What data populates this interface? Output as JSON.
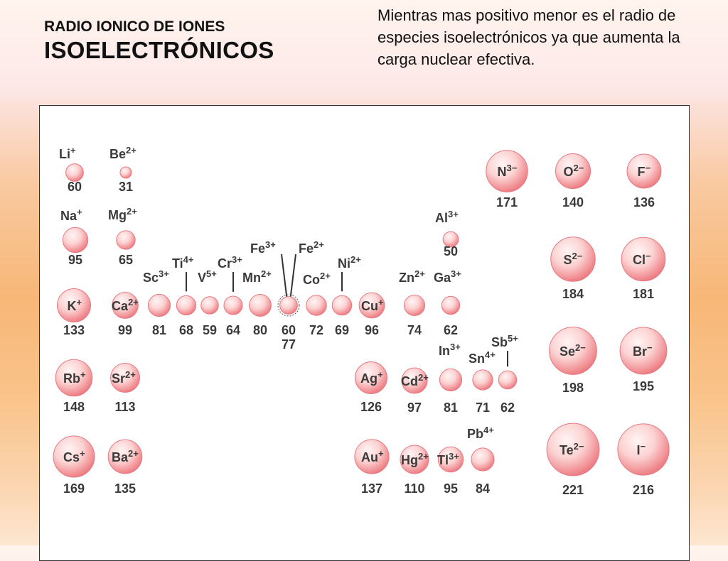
{
  "header": {
    "title_line1": "RADIO IONICO DE IONES",
    "title_line2": "ISOELECTRÓNICOS",
    "note": "Mientras mas positivo menor es el radio de especies isoelectrónicos ya que aumenta la carga nuclear efectiva."
  },
  "colors": {
    "sphere_fill": "#f08a8f",
    "sphere_highlight": "#fde4e4",
    "text": "#3a3a3a"
  },
  "chart_data": {
    "type": "diagram",
    "units": "pm",
    "ions": [
      {
        "symbol": "Li",
        "charge": "+",
        "radius": 60
      },
      {
        "symbol": "Be",
        "charge": "2+",
        "radius": 31
      },
      {
        "symbol": "Na",
        "charge": "+",
        "radius": 95
      },
      {
        "symbol": "Mg",
        "charge": "2+",
        "radius": 65
      },
      {
        "symbol": "K",
        "charge": "+",
        "radius": 133
      },
      {
        "symbol": "Ca",
        "charge": "2+",
        "radius": 99
      },
      {
        "symbol": "Sc",
        "charge": "3+",
        "radius": 81
      },
      {
        "symbol": "Ti",
        "charge": "4+",
        "radius": 68
      },
      {
        "symbol": "V",
        "charge": "5+",
        "radius": 59
      },
      {
        "symbol": "Cr",
        "charge": "3+",
        "radius": 64
      },
      {
        "symbol": "Mn",
        "charge": "2+",
        "radius": 80
      },
      {
        "symbol": "Fe",
        "charge": "3+",
        "radius": 60
      },
      {
        "symbol": "Fe",
        "charge": "2+",
        "radius": 77
      },
      {
        "symbol": "Co",
        "charge": "2+",
        "radius": 72
      },
      {
        "symbol": "Ni",
        "charge": "2+",
        "radius": 69
      },
      {
        "symbol": "Cu",
        "charge": "+",
        "radius": 96
      },
      {
        "symbol": "Zn",
        "charge": "2+",
        "radius": 74
      },
      {
        "symbol": "Ga",
        "charge": "3+",
        "radius": 62
      },
      {
        "symbol": "Al",
        "charge": "3+",
        "radius": 50
      },
      {
        "symbol": "N",
        "charge": "3−",
        "radius": 171
      },
      {
        "symbol": "O",
        "charge": "2−",
        "radius": 140
      },
      {
        "symbol": "F",
        "charge": "−",
        "radius": 136
      },
      {
        "symbol": "S",
        "charge": "2−",
        "radius": 184
      },
      {
        "symbol": "Cl",
        "charge": "−",
        "radius": 181
      },
      {
        "symbol": "Se",
        "charge": "2−",
        "radius": 198
      },
      {
        "symbol": "Br",
        "charge": "−",
        "radius": 195
      },
      {
        "symbol": "Rb",
        "charge": "+",
        "radius": 148
      },
      {
        "symbol": "Sr",
        "charge": "2+",
        "radius": 113
      },
      {
        "symbol": "Ag",
        "charge": "+",
        "radius": 126
      },
      {
        "symbol": "Cd",
        "charge": "2+",
        "radius": 97
      },
      {
        "symbol": "In",
        "charge": "3+",
        "radius": 81
      },
      {
        "symbol": "Sn",
        "charge": "4+",
        "radius": 71
      },
      {
        "symbol": "Sb",
        "charge": "5+",
        "radius": 62
      },
      {
        "symbol": "Te",
        "charge": "2−",
        "radius": 221
      },
      {
        "symbol": "I",
        "charge": "−",
        "radius": 216
      },
      {
        "symbol": "Cs",
        "charge": "+",
        "radius": 169
      },
      {
        "symbol": "Ba",
        "charge": "2+",
        "radius": 135
      },
      {
        "symbol": "Au",
        "charge": "+",
        "radius": 137
      },
      {
        "symbol": "Hg",
        "charge": "2+",
        "radius": 110
      },
      {
        "symbol": "Tl",
        "charge": "3+",
        "radius": 95
      },
      {
        "symbol": "Pb",
        "charge": "4+",
        "radius": 84
      }
    ]
  }
}
